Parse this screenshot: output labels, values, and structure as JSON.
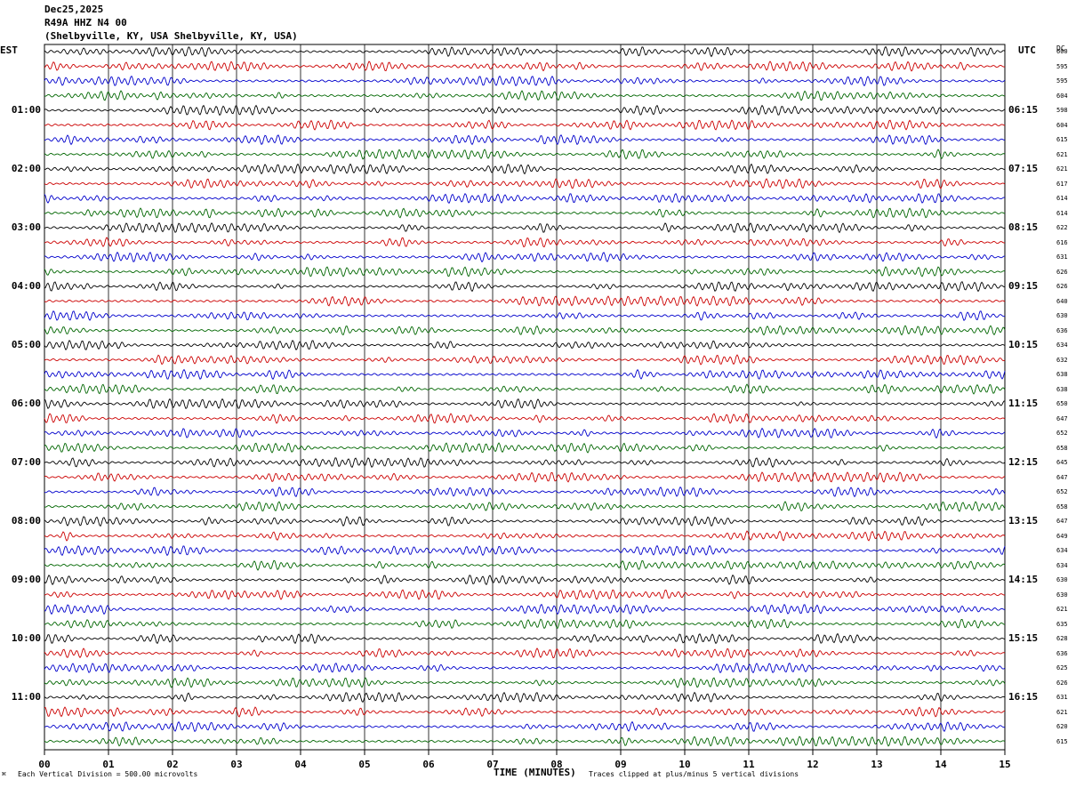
{
  "header": {
    "date": "Dec25,2025",
    "station": "R49A HHZ N4 00",
    "location": "(Shelbyville, KY, USA Shelbyville, KY, USA)"
  },
  "labels": {
    "left_tz": "EST",
    "right_tz": "UTC",
    "dc_header": "DC",
    "xlabel": "TIME (MINUTES)",
    "scale_note": "Each Vertical Division =  500.00 microvolts",
    "clip_note": "Traces clipped at plus/minus 5 vertical divisions",
    "corner_mark": "⌘"
  },
  "chart_data": {
    "type": "line",
    "title": "R49A HHZ N4 00",
    "xlabel": "TIME (MINUTES)",
    "xlim": [
      0,
      15
    ],
    "x_ticks": [
      "00",
      "01",
      "02",
      "03",
      "04",
      "05",
      "06",
      "07",
      "08",
      "09",
      "10",
      "11",
      "12",
      "13",
      "14",
      "15"
    ],
    "grid": true,
    "rows_per_hour": 4,
    "trace_colors": [
      "#000000",
      "#cc0000",
      "#0000cc",
      "#006600"
    ],
    "left_hour_labels": [
      "01:00",
      "02:00",
      "03:00",
      "04:00",
      "05:00",
      "06:00",
      "07:00",
      "08:00",
      "09:00",
      "10:00",
      "11:00"
    ],
    "right_hour_labels": [
      "06:15",
      "07:15",
      "08:15",
      "09:15",
      "10:15",
      "11:15",
      "12:15",
      "13:15",
      "14:15",
      "15:15",
      "16:15"
    ],
    "dc_offsets": [
      600,
      595,
      595,
      604,
      598,
      604,
      615,
      621,
      621,
      617,
      614,
      614,
      622,
      616,
      631,
      626,
      626,
      640,
      630,
      636,
      634,
      632,
      638,
      638,
      650,
      647,
      652,
      658,
      645,
      647,
      652,
      658,
      647,
      649,
      634,
      634,
      630,
      630,
      621,
      635,
      628,
      636,
      625,
      626,
      631,
      621,
      620,
      615
    ]
  }
}
